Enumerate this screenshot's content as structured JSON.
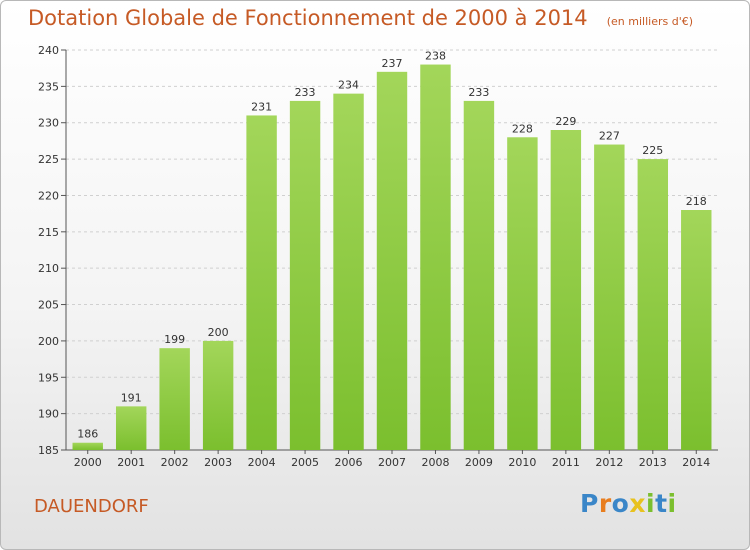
{
  "chart_data": {
    "type": "bar",
    "title": "Dotation Globale de Fonctionnement de 2000 à 2014",
    "subtitle": "(en milliers d'€)",
    "categories": [
      "2000",
      "2001",
      "2002",
      "2003",
      "2004",
      "2005",
      "2006",
      "2007",
      "2008",
      "2009",
      "2010",
      "2011",
      "2012",
      "2013",
      "2014"
    ],
    "values": [
      186,
      191,
      199,
      200,
      231,
      233,
      234,
      237,
      238,
      233,
      228,
      229,
      227,
      225,
      218
    ],
    "ylim": [
      185,
      240
    ],
    "yticks": [
      185,
      190,
      195,
      200,
      205,
      210,
      215,
      220,
      225,
      230,
      235,
      240
    ],
    "grid": true,
    "bar_color": "#7bbf2e",
    "bar_color_light": "#a3d65a"
  },
  "commune_name": "DAUENDORF",
  "logo": {
    "letters": [
      "P",
      "r",
      "o",
      "x",
      "i",
      "t",
      "i"
    ],
    "colors": [
      "#3a86c8",
      "#e87d1e",
      "#3a86c8",
      "#e8c21e",
      "#7bbf2e",
      "#3a86c8",
      "#7bbf2e"
    ]
  },
  "colors": {
    "accent": "#c65a25",
    "grid": "#d0d0d0"
  }
}
